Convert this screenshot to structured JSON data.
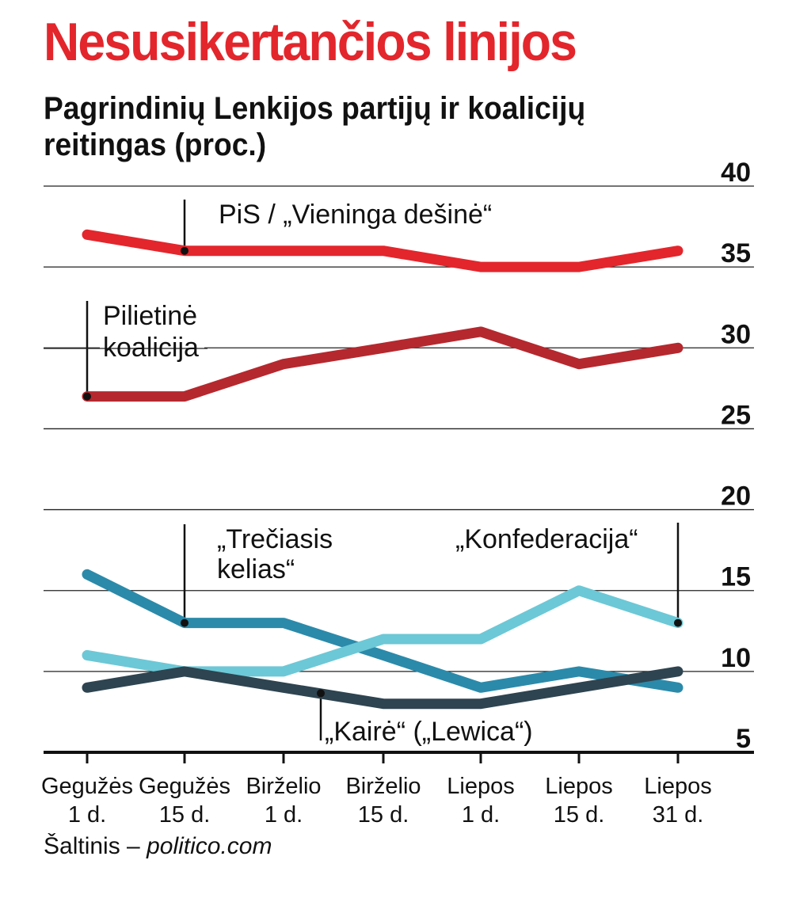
{
  "title": "Nesusikertančios linijos",
  "subtitle": "Pagrindinių Lenkijos partijų ir koalicijų reitingas (proc.)",
  "source": {
    "prefix": "Šaltinis – ",
    "site": "politico.com"
  },
  "chart_data": {
    "type": "line",
    "title": "Nesusikertančios linijos",
    "subtitle": "Pagrindinių Lenkijos partijų ir koalicijų reitingas (proc.)",
    "xlabel": "",
    "ylabel": "",
    "ylim": [
      5,
      40
    ],
    "yticks": [
      40,
      35,
      30,
      25,
      20,
      15,
      10,
      5
    ],
    "grid": true,
    "categories": [
      [
        "Gegužės",
        "1 d."
      ],
      [
        "Gegužės",
        "15 d."
      ],
      [
        "Birželio",
        "1 d."
      ],
      [
        "Birželio",
        "15 d."
      ],
      [
        "Liepos",
        "1 d."
      ],
      [
        "Liepos",
        "15 d."
      ],
      [
        "Liepos",
        "31 d."
      ]
    ],
    "series": [
      {
        "name": "PiS / „Vieninga dešinė“",
        "color": "#e3262c",
        "values": [
          37,
          36,
          36,
          36,
          35,
          35,
          36
        ]
      },
      {
        "name": "Pilietinė koalicija",
        "color": "#b5282e",
        "values": [
          27,
          27,
          29,
          30,
          31,
          29,
          30
        ]
      },
      {
        "name": "„Trečiasis kelias“",
        "color": "#2b8aaa",
        "values": [
          16,
          13,
          13,
          11,
          9,
          10,
          9
        ]
      },
      {
        "name": "„Konfederacija“",
        "color": "#6cc8d6",
        "values": [
          11,
          10,
          10,
          12,
          12,
          15,
          13
        ]
      },
      {
        "name": "„Kairė“ („Lewica“)",
        "color": "#2e4450",
        "values": [
          9,
          10,
          9,
          8,
          8,
          9,
          10
        ]
      }
    ],
    "annotations": [
      {
        "series": 0,
        "index": 1,
        "lines": [
          "PiS / „Vieninga dešinė“"
        ]
      },
      {
        "series": 1,
        "index": 0,
        "lines": [
          "Pilietinė",
          "koalicija"
        ]
      },
      {
        "series": 2,
        "index": 1,
        "lines": [
          "„Trečiasis",
          "kelias“"
        ]
      },
      {
        "series": 3,
        "index": 6,
        "lines": [
          "„Konfederacija“"
        ]
      },
      {
        "series": 4,
        "index": 2,
        "lines": [
          "„Kairė“ („Lewica“)"
        ]
      }
    ]
  }
}
